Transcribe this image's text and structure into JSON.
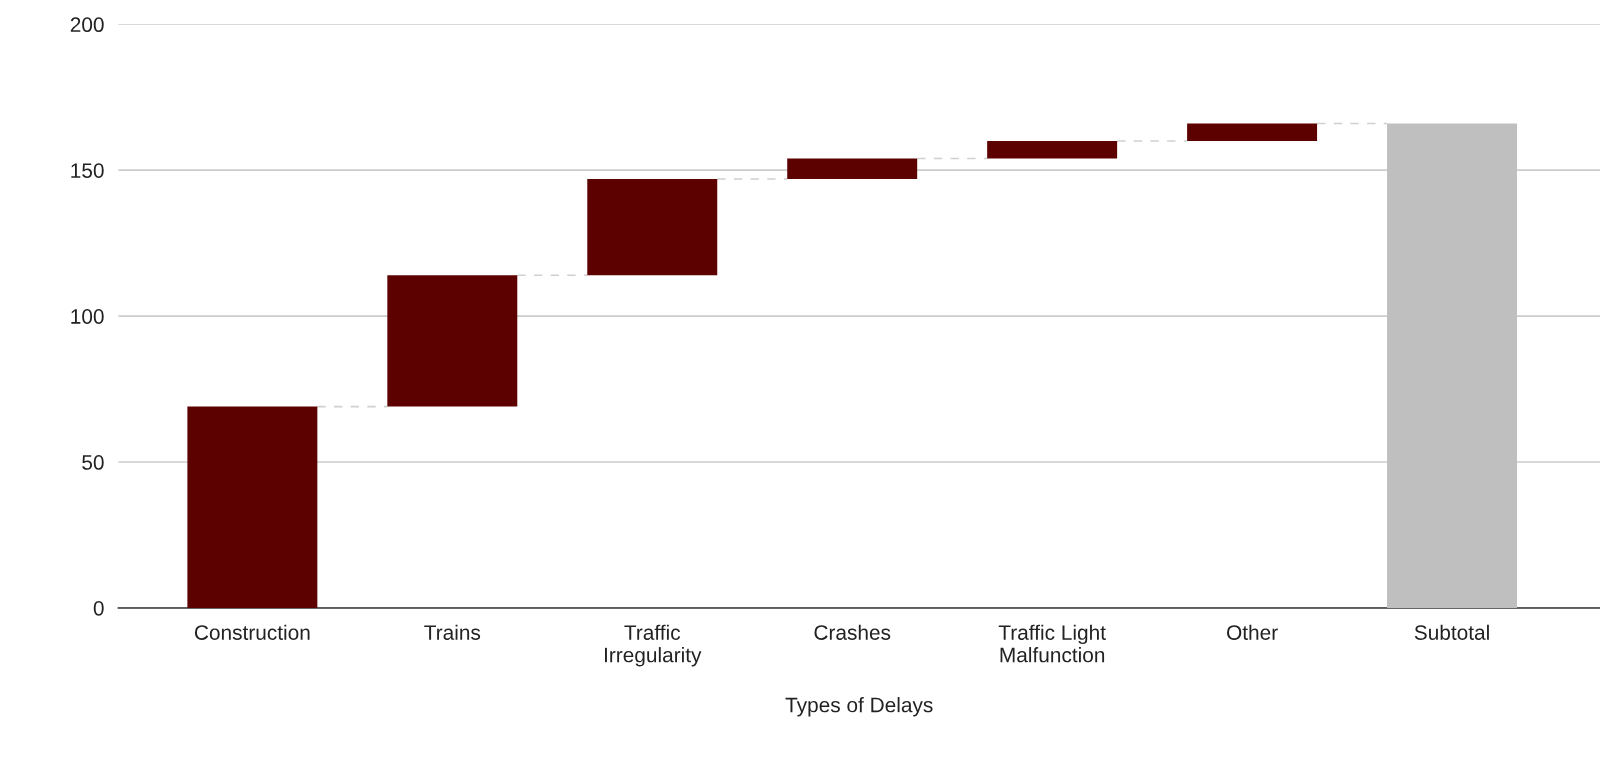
{
  "chart_data": {
    "type": "bar",
    "xlabel": "Types of Delays",
    "categories": [
      "Construction",
      "Trains",
      "Traffic\nIrregularity",
      "Crashes",
      "Traffic Light\nMalfunction",
      "Other",
      "Subtotal"
    ],
    "values": [
      69,
      45,
      33,
      7,
      6,
      6,
      166
    ],
    "base": [
      0,
      69,
      114,
      147,
      154,
      160,
      0
    ],
    "colors": [
      "#5c0000",
      "#5c0000",
      "#5c0000",
      "#5c0000",
      "#5c0000",
      "#5c0000",
      "#bfbfbf"
    ],
    "ylim": [
      0,
      200
    ],
    "yticks": [
      0,
      50,
      100,
      150,
      200
    ],
    "grid": "y"
  }
}
